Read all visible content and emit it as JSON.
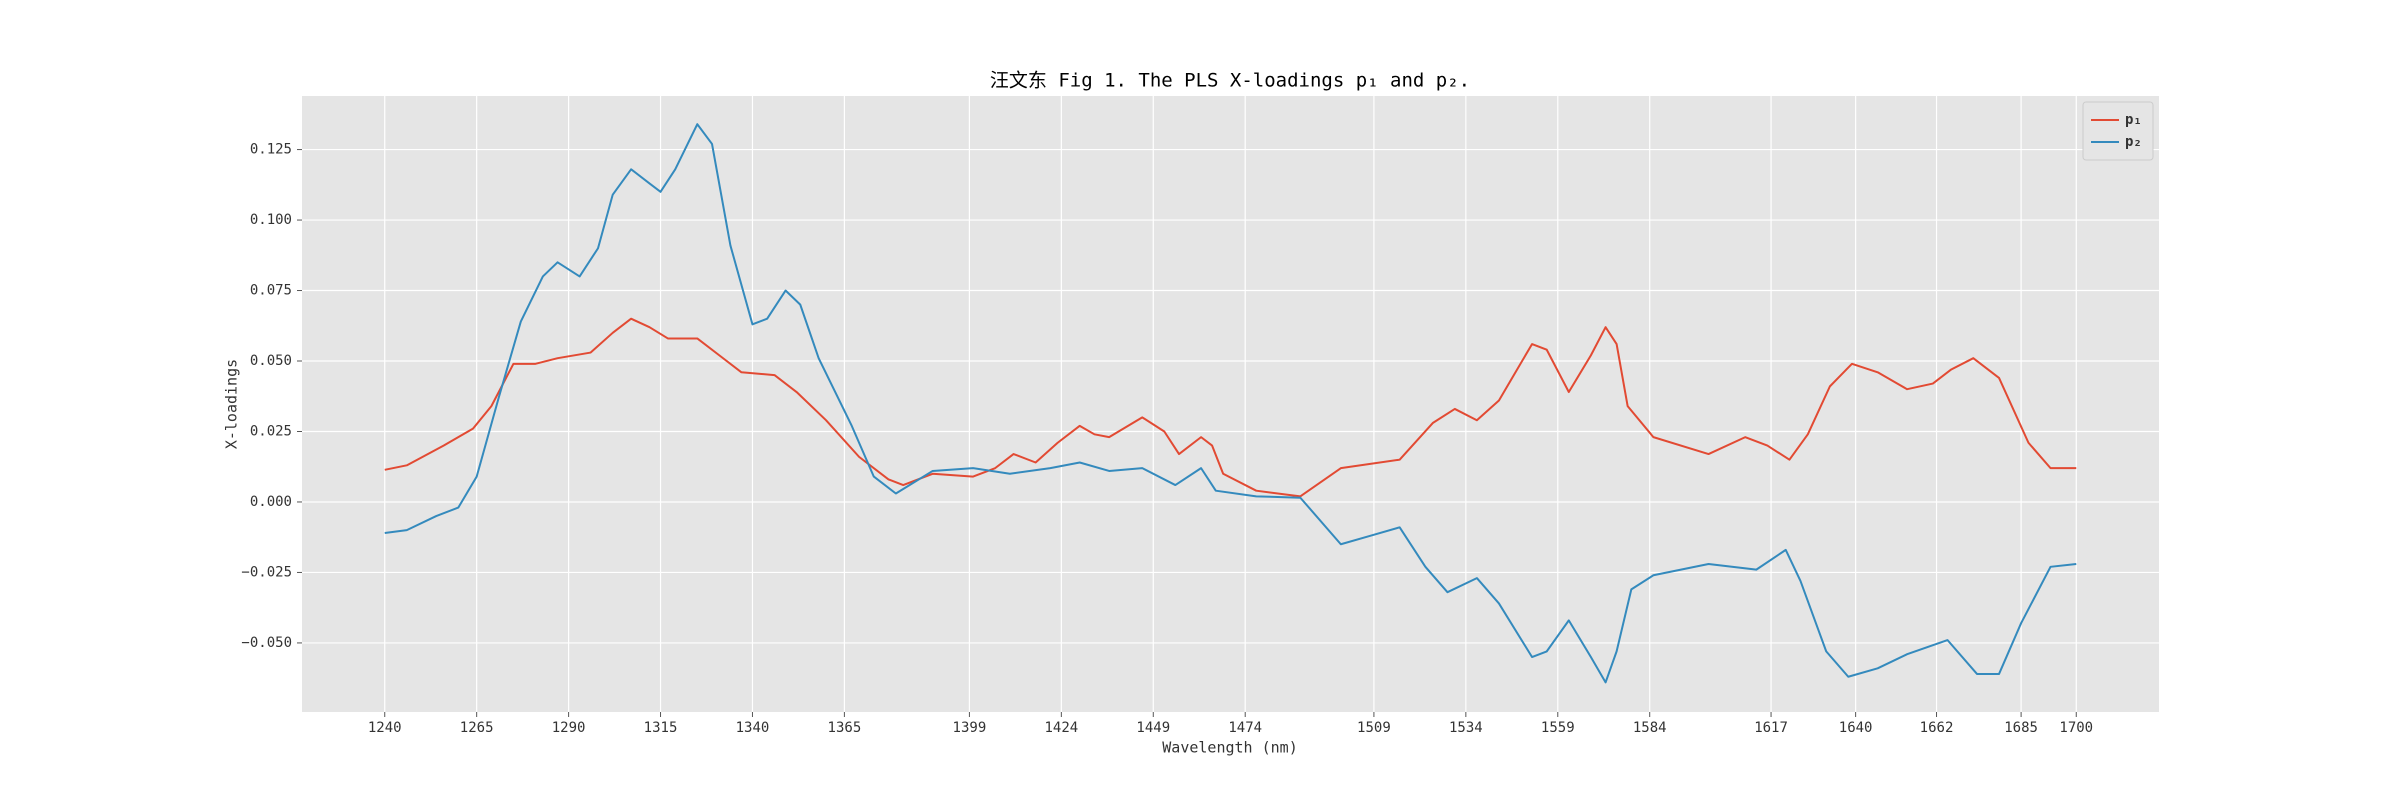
{
  "chart_data": {
    "type": "line",
    "title": "汪文东 Fig 1. The PLS X-loadings p₁ and p₂.",
    "xlabel": "Wavelength (nm)",
    "ylabel": "X-loadings",
    "xlim": [
      1217.5,
      1722.5
    ],
    "ylim": [
      -0.0745,
      0.144
    ],
    "xticks": [
      1240,
      1265,
      1290,
      1315,
      1340,
      1365,
      1399,
      1424,
      1449,
      1474,
      1509,
      1534,
      1559,
      1584,
      1617,
      1640,
      1662,
      1685,
      1700
    ],
    "yticks": [
      {
        "value": -0.05,
        "label": "−0.050"
      },
      {
        "value": -0.025,
        "label": "−0.025"
      },
      {
        "value": 0,
        "label": "0.000"
      },
      0.025,
      {
        "value": 0.05,
        "label": "0.050"
      },
      0.075,
      {
        "value": 0.1,
        "label": "0.100"
      },
      0.125
    ],
    "grid": true,
    "legend": "upper right",
    "series": [
      {
        "name": "p₁",
        "color": "#e24a33",
        "x": [
          1240,
          1246,
          1256,
          1264,
          1269,
          1275,
          1281,
          1287,
          1296,
          1302,
          1307,
          1312,
          1317,
          1325,
          1331,
          1337,
          1346,
          1352,
          1360,
          1369,
          1377,
          1381,
          1389,
          1400,
          1406,
          1411,
          1417,
          1423,
          1429,
          1433,
          1437,
          1446,
          1452,
          1456,
          1462,
          1465,
          1468,
          1477,
          1489,
          1500,
          1516,
          1525,
          1531,
          1537,
          1543,
          1552,
          1556,
          1562,
          1568,
          1572,
          1575,
          1578,
          1585,
          1600,
          1610,
          1616,
          1622,
          1627,
          1633,
          1639,
          1646,
          1654,
          1661,
          1666,
          1672,
          1679,
          1687,
          1693,
          1700
        ],
        "values": [
          0.0114,
          0.013,
          0.02,
          0.026,
          0.034,
          0.049,
          0.049,
          0.051,
          0.053,
          0.06,
          0.065,
          0.062,
          0.058,
          0.058,
          0.052,
          0.046,
          0.045,
          0.039,
          0.029,
          0.016,
          0.008,
          0.006,
          0.01,
          0.009,
          0.012,
          0.017,
          0.014,
          0.021,
          0.027,
          0.024,
          0.023,
          0.03,
          0.025,
          0.017,
          0.023,
          0.02,
          0.01,
          0.004,
          0.002,
          0.012,
          0.015,
          0.028,
          0.033,
          0.029,
          0.036,
          0.056,
          0.054,
          0.039,
          0.052,
          0.062,
          0.056,
          0.034,
          0.023,
          0.017,
          0.023,
          0.02,
          0.015,
          0.024,
          0.041,
          0.049,
          0.046,
          0.04,
          0.042,
          0.047,
          0.051,
          0.044,
          0.021,
          0.012,
          0.012
        ]
      },
      {
        "name": "p₂",
        "color": "#348abd",
        "x": [
          1240,
          1246,
          1254,
          1260,
          1265,
          1271,
          1277,
          1283,
          1287,
          1293,
          1298,
          1302,
          1307,
          1312,
          1315,
          1319,
          1325,
          1329,
          1334,
          1340,
          1344,
          1349,
          1353,
          1358,
          1367,
          1373,
          1379,
          1389,
          1400,
          1410,
          1421,
          1429,
          1437,
          1446,
          1455,
          1462,
          1466,
          1477,
          1489,
          1500,
          1508,
          1516,
          1523,
          1529,
          1537,
          1543,
          1552,
          1556,
          1562,
          1568,
          1572,
          1575,
          1579,
          1585,
          1600,
          1613,
          1621,
          1625,
          1632,
          1638,
          1646,
          1654,
          1665,
          1673,
          1679,
          1685,
          1693,
          1700
        ],
        "values": [
          -0.011,
          -0.01,
          -0.005,
          -0.002,
          0.009,
          0.037,
          0.064,
          0.08,
          0.085,
          0.08,
          0.09,
          0.109,
          0.118,
          0.113,
          0.11,
          0.118,
          0.134,
          0.127,
          0.091,
          0.063,
          0.065,
          0.075,
          0.07,
          0.051,
          0.027,
          0.009,
          0.003,
          0.011,
          0.012,
          0.01,
          0.012,
          0.014,
          0.011,
          0.012,
          0.006,
          0.012,
          0.004,
          0.002,
          0.0015,
          -0.015,
          -0.012,
          -0.009,
          -0.023,
          -0.032,
          -0.027,
          -0.036,
          -0.055,
          -0.053,
          -0.042,
          -0.055,
          -0.064,
          -0.053,
          -0.031,
          -0.026,
          -0.022,
          -0.024,
          -0.017,
          -0.028,
          -0.053,
          -0.062,
          -0.059,
          -0.054,
          -0.049,
          -0.061,
          -0.061,
          -0.043,
          -0.023,
          -0.022
        ]
      }
    ]
  }
}
